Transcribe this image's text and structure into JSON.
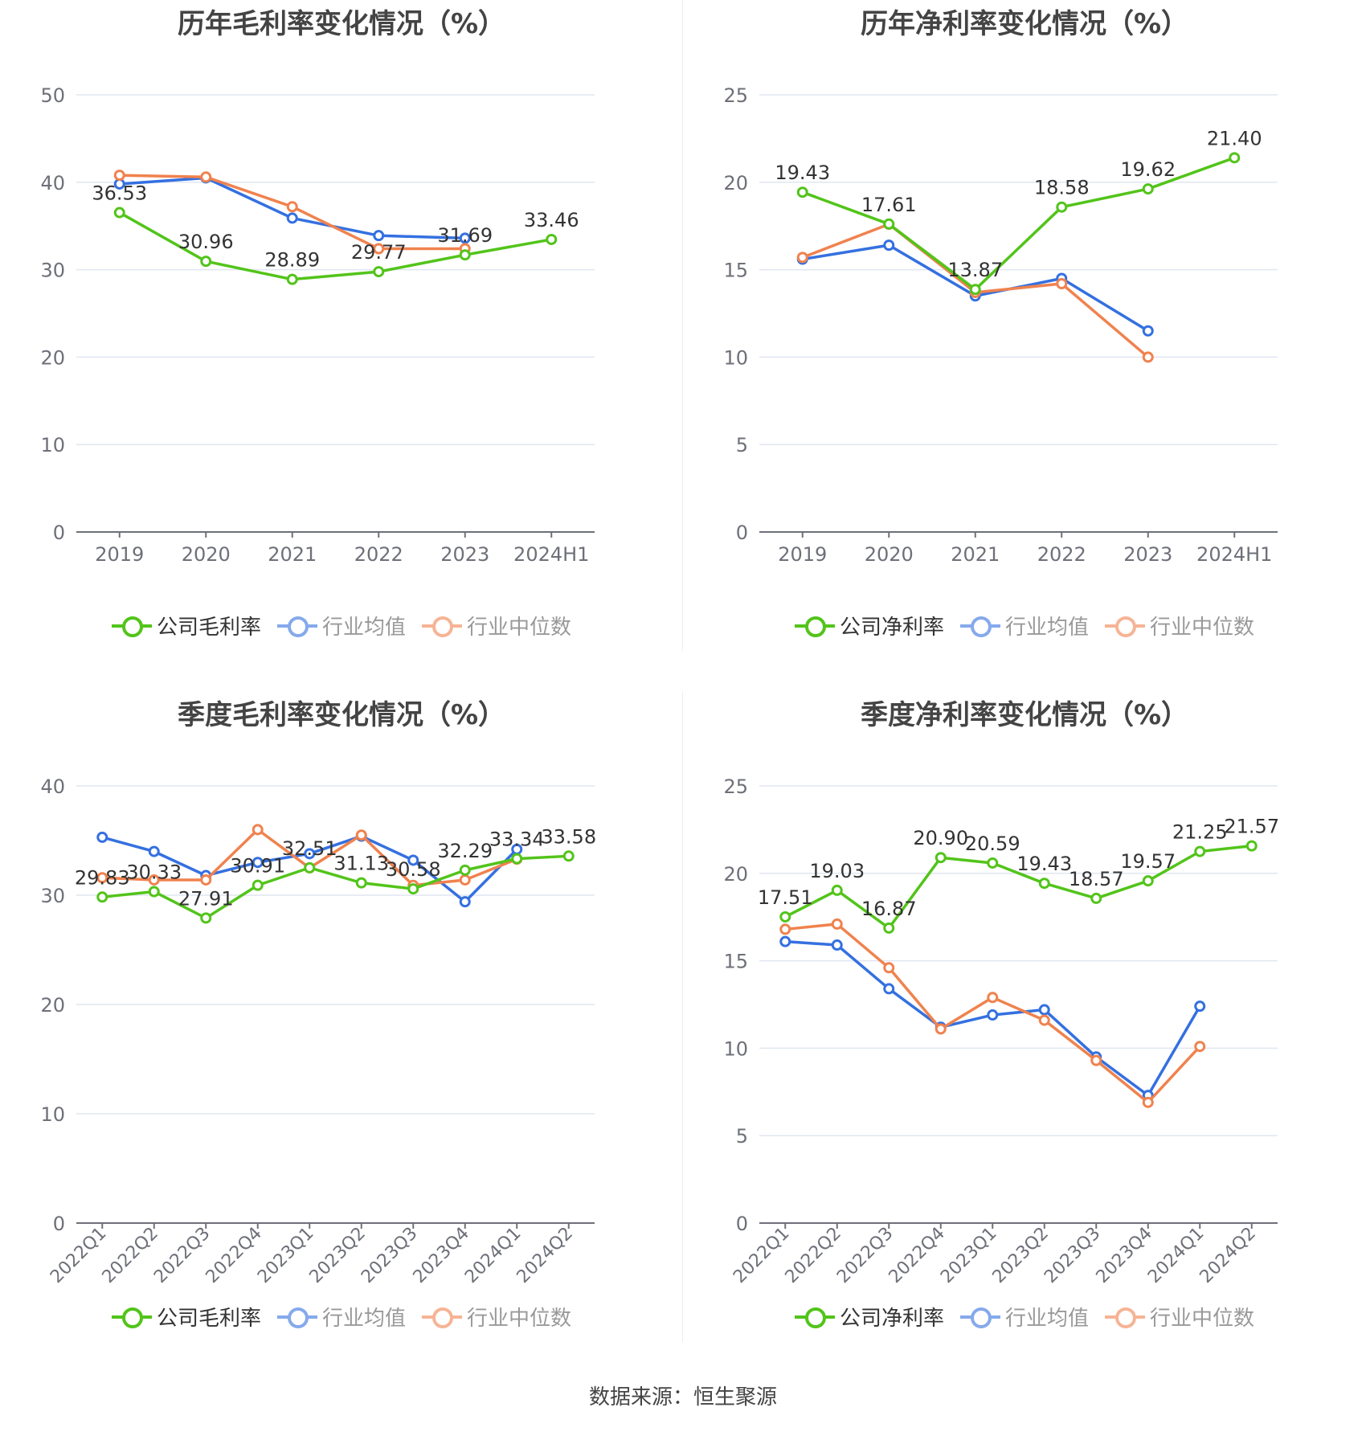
{
  "source_text": "数据来源：恒生聚源",
  "colors": {
    "company": "#52c41a",
    "industry_avg": "#3470e0",
    "industry_median": "#f0824e"
  },
  "chart_data": [
    {
      "type": "line",
      "title": "历年毛利率变化情况（%）",
      "x": [
        "2019",
        "2020",
        "2021",
        "2022",
        "2023",
        "2024H1"
      ],
      "ylim": [
        0,
        50
      ],
      "yticks": [
        0,
        10,
        20,
        30,
        40,
        50
      ],
      "grid": true,
      "x_label_rotate": false,
      "legend_position": "bottom",
      "series": [
        {
          "name": "公司毛利率",
          "color": "#52c41a",
          "labeled": true,
          "legend_dim": false,
          "values": [
            36.53,
            30.96,
            28.89,
            29.77,
            31.69,
            33.46
          ]
        },
        {
          "name": "行业均值",
          "color": "#3470e0",
          "labeled": false,
          "legend_dim": true,
          "values": [
            39.8,
            40.5,
            35.9,
            33.9,
            33.6,
            null
          ]
        },
        {
          "name": "行业中位数",
          "color": "#f0824e",
          "labeled": false,
          "legend_dim": true,
          "values": [
            40.8,
            40.6,
            37.2,
            32.4,
            32.4,
            null
          ]
        }
      ]
    },
    {
      "type": "line",
      "title": "历年净利率变化情况（%）",
      "x": [
        "2019",
        "2020",
        "2021",
        "2022",
        "2023",
        "2024H1"
      ],
      "ylim": [
        0,
        25
      ],
      "yticks": [
        0,
        5,
        10,
        15,
        20,
        25
      ],
      "grid": true,
      "x_label_rotate": false,
      "legend_position": "bottom",
      "series": [
        {
          "name": "公司净利率",
          "color": "#52c41a",
          "labeled": true,
          "legend_dim": false,
          "values": [
            19.43,
            17.61,
            13.87,
            18.58,
            19.62,
            21.4
          ]
        },
        {
          "name": "行业均值",
          "color": "#3470e0",
          "labeled": false,
          "legend_dim": true,
          "values": [
            15.6,
            16.4,
            13.5,
            14.5,
            11.5,
            null
          ]
        },
        {
          "name": "行业中位数",
          "color": "#f0824e",
          "labeled": false,
          "legend_dim": true,
          "values": [
            15.7,
            17.6,
            13.7,
            14.2,
            10.0,
            null
          ]
        }
      ]
    },
    {
      "type": "line",
      "title": "季度毛利率变化情况（%）",
      "x": [
        "2022Q1",
        "2022Q2",
        "2022Q3",
        "2022Q4",
        "2023Q1",
        "2023Q2",
        "2023Q3",
        "2023Q4",
        "2024Q1",
        "2024Q2"
      ],
      "ylim": [
        0,
        40
      ],
      "yticks": [
        0,
        10,
        20,
        30,
        40
      ],
      "grid": true,
      "x_label_rotate": true,
      "legend_position": "bottom",
      "series": [
        {
          "name": "公司毛利率",
          "color": "#52c41a",
          "labeled": true,
          "legend_dim": false,
          "values": [
            29.83,
            30.33,
            27.91,
            30.91,
            32.51,
            31.13,
            30.58,
            32.29,
            33.34,
            33.58
          ]
        },
        {
          "name": "行业均值",
          "color": "#3470e0",
          "labeled": false,
          "legend_dim": true,
          "values": [
            35.3,
            34.0,
            31.8,
            33.0,
            33.8,
            35.4,
            33.2,
            29.4,
            34.2,
            null
          ]
        },
        {
          "name": "行业中位数",
          "color": "#f0824e",
          "labeled": false,
          "legend_dim": true,
          "values": [
            31.6,
            31.4,
            31.4,
            36.0,
            32.5,
            35.5,
            30.9,
            31.4,
            33.3,
            null
          ]
        }
      ]
    },
    {
      "type": "line",
      "title": "季度净利率变化情况（%）",
      "x": [
        "2022Q1",
        "2022Q2",
        "2022Q3",
        "2022Q4",
        "2023Q1",
        "2023Q2",
        "2023Q3",
        "2023Q4",
        "2024Q1",
        "2024Q2"
      ],
      "ylim": [
        0,
        25
      ],
      "yticks": [
        0,
        5,
        10,
        15,
        20,
        25
      ],
      "grid": true,
      "x_label_rotate": true,
      "legend_position": "bottom",
      "series": [
        {
          "name": "公司净利率",
          "color": "#52c41a",
          "labeled": true,
          "legend_dim": false,
          "values": [
            17.51,
            19.03,
            16.87,
            20.9,
            20.59,
            19.43,
            18.57,
            19.57,
            21.25,
            21.57
          ]
        },
        {
          "name": "行业均值",
          "color": "#3470e0",
          "labeled": false,
          "legend_dim": true,
          "values": [
            16.1,
            15.9,
            13.4,
            11.2,
            11.9,
            12.2,
            9.5,
            7.3,
            12.4,
            null
          ]
        },
        {
          "name": "行业中位数",
          "color": "#f0824e",
          "labeled": false,
          "legend_dim": true,
          "values": [
            16.8,
            17.1,
            14.6,
            11.1,
            12.9,
            11.6,
            9.3,
            6.9,
            10.1,
            null
          ]
        }
      ]
    }
  ]
}
